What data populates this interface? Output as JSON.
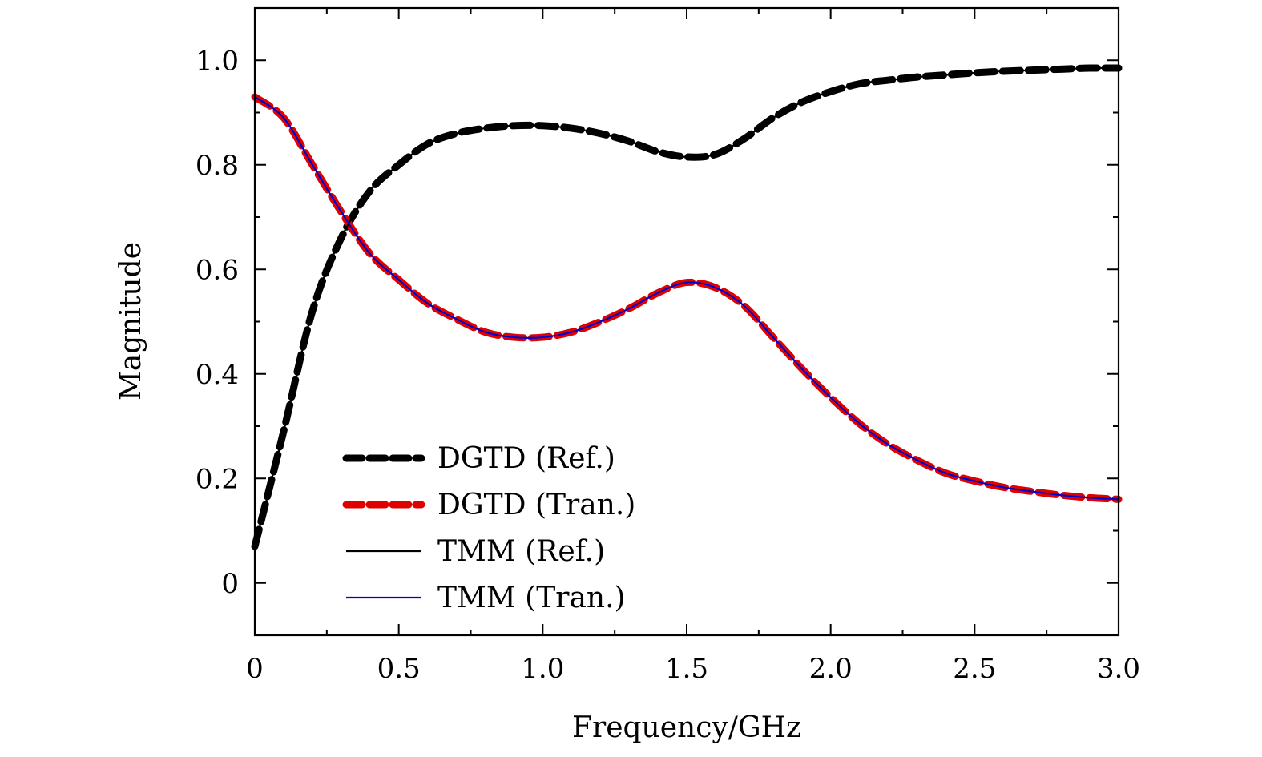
{
  "chart_data": {
    "type": "line",
    "title": "",
    "xlabel": "Frequency/GHz",
    "ylabel": "Magnitude",
    "xlim": [
      0,
      3.0
    ],
    "ylim": [
      -0.1,
      1.1
    ],
    "x_ticks": [
      0,
      0.5,
      1.0,
      1.5,
      2.0,
      2.5,
      3.0
    ],
    "x_tick_labels": [
      "0",
      "0.5",
      "1.0",
      "1.5",
      "2.0",
      "2.5",
      "3.0"
    ],
    "y_ticks": [
      0,
      0.2,
      0.4,
      0.6,
      0.8,
      1.0
    ],
    "y_tick_labels": [
      "0",
      "0.2",
      "0.4",
      "0.6",
      "0.8",
      "1.0"
    ],
    "grid": false,
    "legend_position": "bottom-left",
    "x": [
      0,
      0.1,
      0.2,
      0.3,
      0.4,
      0.5,
      0.6,
      0.7,
      0.8,
      0.9,
      1.0,
      1.1,
      1.2,
      1.3,
      1.4,
      1.5,
      1.6,
      1.7,
      1.8,
      1.9,
      2.0,
      2.1,
      2.2,
      2.3,
      2.4,
      2.5,
      2.6,
      2.7,
      2.8,
      2.9,
      3.0
    ],
    "series": [
      {
        "name": "DGTD (Ref.)",
        "color": "#000000",
        "style": "dashed",
        "values": [
          0.07,
          0.29,
          0.52,
          0.66,
          0.75,
          0.8,
          0.84,
          0.86,
          0.87,
          0.875,
          0.875,
          0.87,
          0.86,
          0.845,
          0.825,
          0.815,
          0.82,
          0.85,
          0.89,
          0.92,
          0.94,
          0.955,
          0.962,
          0.968,
          0.972,
          0.976,
          0.979,
          0.981,
          0.983,
          0.985,
          0.985
        ]
      },
      {
        "name": "DGTD (Tran.)",
        "color": "#e00000",
        "style": "dashed",
        "values": [
          0.93,
          0.89,
          0.8,
          0.71,
          0.63,
          0.58,
          0.535,
          0.505,
          0.48,
          0.47,
          0.47,
          0.48,
          0.5,
          0.525,
          0.555,
          0.575,
          0.565,
          0.53,
          0.47,
          0.41,
          0.355,
          0.305,
          0.265,
          0.235,
          0.21,
          0.195,
          0.183,
          0.175,
          0.168,
          0.163,
          0.16
        ]
      },
      {
        "name": "TMM (Ref.)",
        "color": "#000000",
        "style": "solid",
        "values": [
          0.07,
          0.29,
          0.52,
          0.66,
          0.75,
          0.8,
          0.84,
          0.86,
          0.87,
          0.875,
          0.875,
          0.87,
          0.86,
          0.845,
          0.825,
          0.815,
          0.82,
          0.85,
          0.89,
          0.92,
          0.94,
          0.955,
          0.962,
          0.968,
          0.972,
          0.976,
          0.979,
          0.981,
          0.983,
          0.985,
          0.985
        ]
      },
      {
        "name": "TMM (Tran.)",
        "color": "#0000cc",
        "style": "solid",
        "values": [
          0.93,
          0.89,
          0.8,
          0.71,
          0.63,
          0.58,
          0.535,
          0.505,
          0.48,
          0.47,
          0.47,
          0.48,
          0.5,
          0.525,
          0.555,
          0.575,
          0.565,
          0.53,
          0.47,
          0.41,
          0.355,
          0.305,
          0.265,
          0.235,
          0.21,
          0.195,
          0.183,
          0.175,
          0.168,
          0.163,
          0.16
        ]
      }
    ]
  }
}
